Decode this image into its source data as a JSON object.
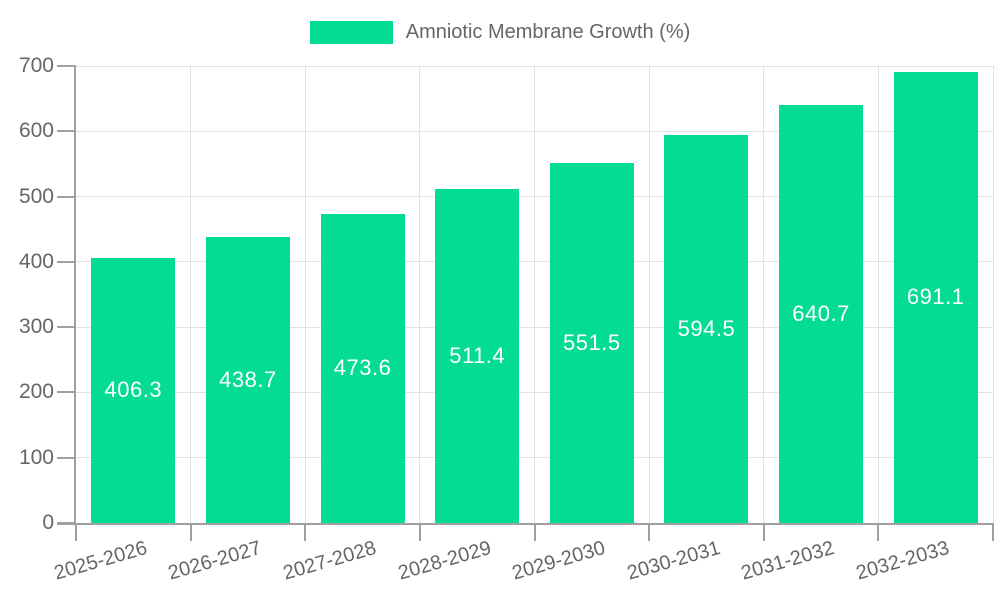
{
  "chart_data": {
    "type": "bar",
    "title": "",
    "series_name": "Amniotic Membrane Growth (%)",
    "categories": [
      "2025-2026",
      "2026-2027",
      "2027-2028",
      "2028-2029",
      "2029-2030",
      "2030-2031",
      "2031-2032",
      "2032-2033"
    ],
    "values": [
      406.3,
      438.7,
      473.6,
      511.4,
      551.5,
      594.5,
      640.7,
      691.1
    ],
    "value_labels": [
      "406.3",
      "438.7",
      "473.6",
      "511.4",
      "551.5",
      "594.5",
      "640.7",
      "691.1"
    ],
    "xlabel": "",
    "ylabel": "",
    "ylim": [
      0,
      700
    ],
    "y_ticks": [
      0,
      100,
      200,
      300,
      400,
      500,
      600,
      700
    ],
    "grid": true,
    "legend_position": "top",
    "colors": {
      "bar": "#04dc94",
      "bar_label": "#ffffff",
      "axis": "#a0a0a0",
      "grid": "#e2e2e2",
      "tick_label": "#666666",
      "legend_text": "#666666",
      "background": "#ffffff"
    }
  }
}
